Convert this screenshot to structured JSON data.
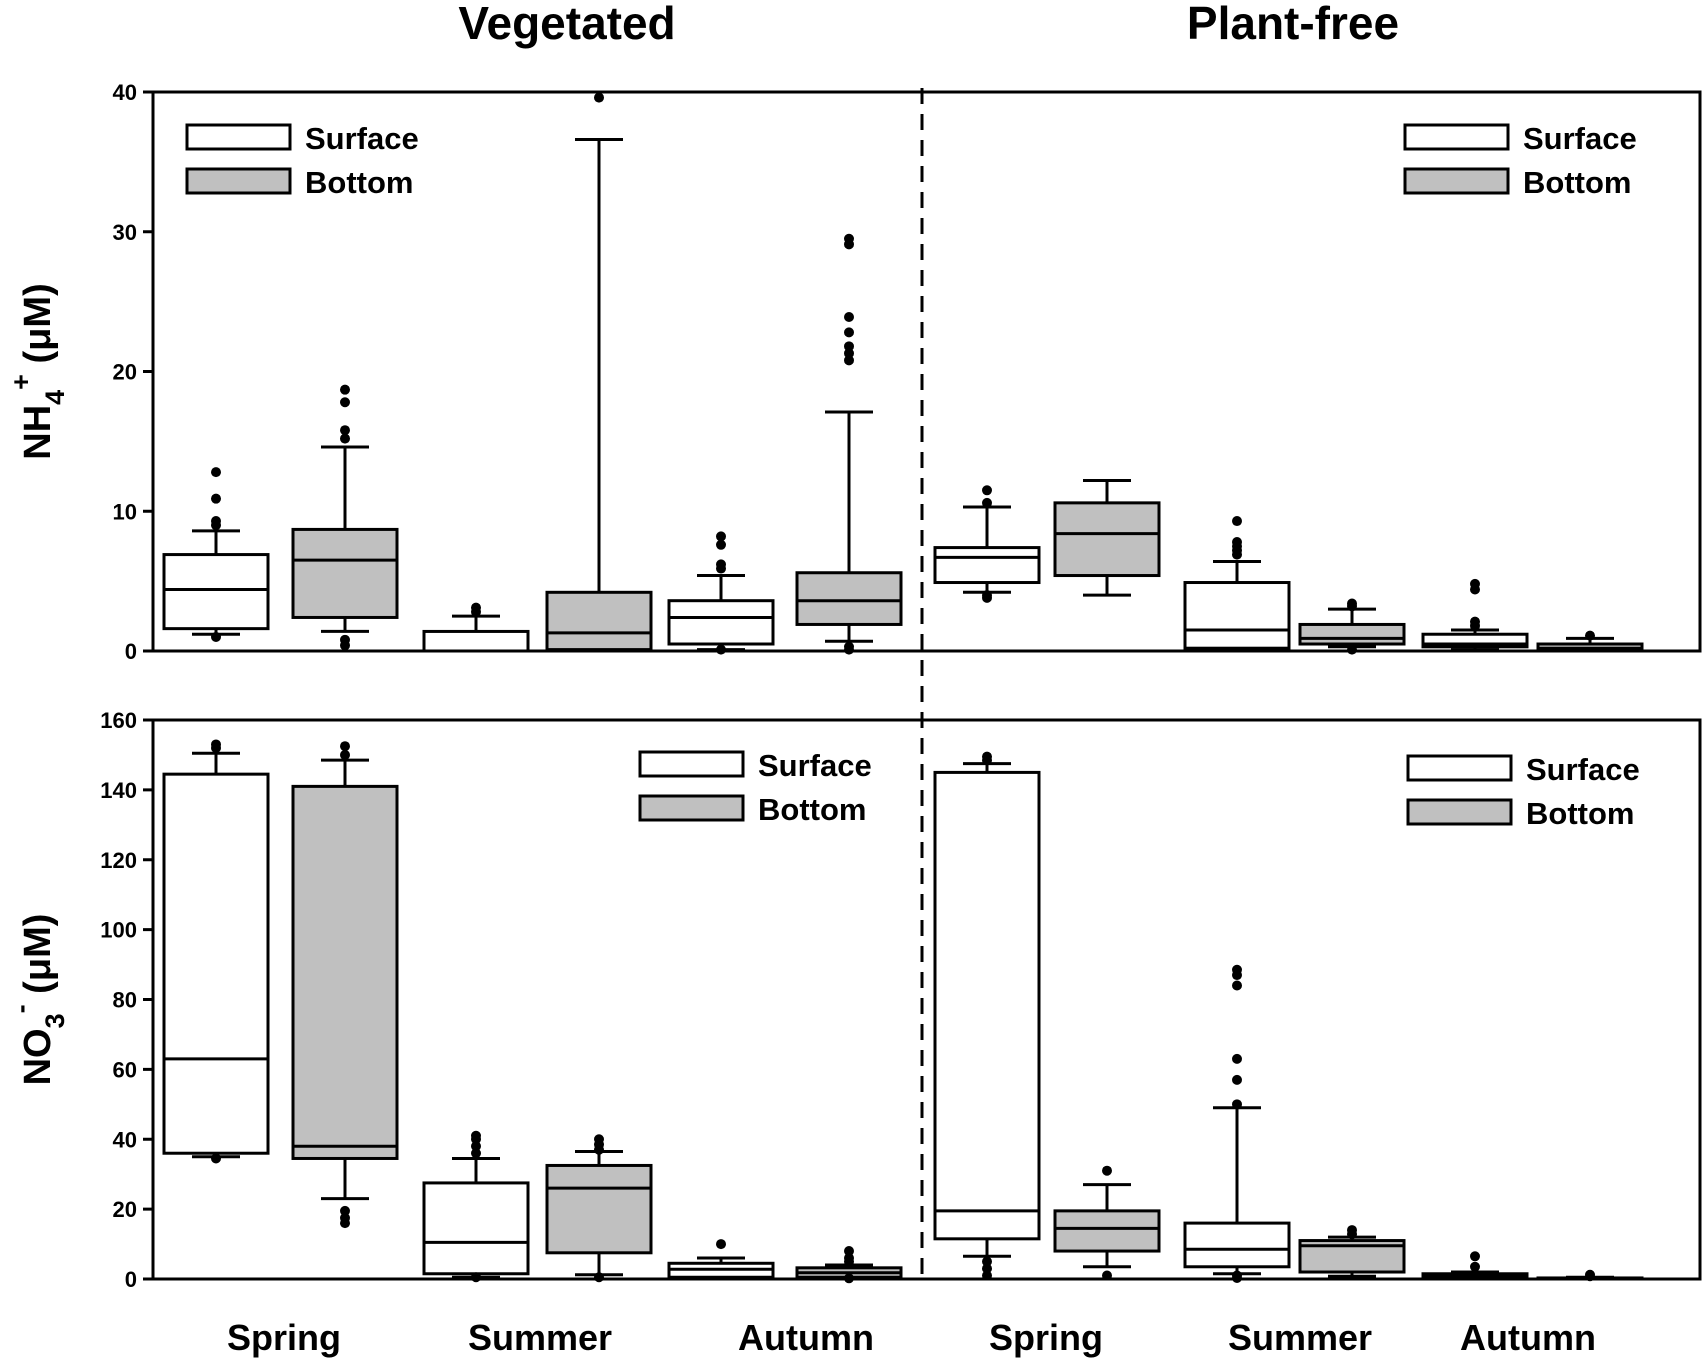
{
  "chart_data": {
    "type": "box",
    "headers": {
      "left": "Vegetated",
      "right": "Plant-free"
    },
    "categories": [
      "Spring",
      "Summer",
      "Autumn",
      "Spring",
      "Summer",
      "Autumn"
    ],
    "legend": {
      "surface": "Surface",
      "bottom": "Bottom"
    },
    "colors": {
      "surface": "#ffffff",
      "bottom": "#c0c0c0",
      "stroke": "#000000"
    },
    "panels": [
      {
        "id": "nh4",
        "ylabel_main": "NH",
        "ylabel_sub": "4",
        "ylabel_sup": "+",
        "ylabel_unit": " (μM)",
        "ylim": [
          0,
          40
        ],
        "yticks": [
          0,
          10,
          20,
          30,
          40
        ],
        "tick_labels": [
          "0",
          "10",
          "20",
          "30",
          "40"
        ],
        "boxes": [
          {
            "group": "Vegetated",
            "season": "Spring",
            "layer": "Surface",
            "whislo": 1.2,
            "q1": 1.6,
            "med": 4.4,
            "q3": 6.9,
            "whishi": 8.6,
            "fliers": [
              1.0,
              9.0,
              9.3,
              10.9,
              12.8
            ]
          },
          {
            "group": "Vegetated",
            "season": "Spring",
            "layer": "Bottom",
            "whislo": 1.4,
            "q1": 2.4,
            "med": 6.5,
            "q3": 8.7,
            "whishi": 14.6,
            "fliers": [
              0.4,
              0.8,
              15.2,
              15.8,
              17.8,
              18.7
            ]
          },
          {
            "group": "Vegetated",
            "season": "Summer",
            "layer": "Surface",
            "whislo": 0.0,
            "q1": 0.0,
            "med": 0.0,
            "q3": 1.4,
            "whishi": 2.5,
            "fliers": [
              2.8,
              3.1
            ]
          },
          {
            "group": "Vegetated",
            "season": "Summer",
            "layer": "Bottom",
            "whislo": 0.1,
            "q1": 0.1,
            "med": 1.3,
            "q3": 4.2,
            "whishi": 36.6,
            "fliers": [
              39.6
            ]
          },
          {
            "group": "Vegetated",
            "season": "Autumn",
            "layer": "Surface",
            "whislo": 0.1,
            "q1": 0.5,
            "med": 2.4,
            "q3": 3.6,
            "whishi": 5.4,
            "fliers": [
              0.1,
              5.9,
              6.2,
              7.6,
              8.2
            ]
          },
          {
            "group": "Vegetated",
            "season": "Autumn",
            "layer": "Bottom",
            "whislo": 0.7,
            "q1": 1.9,
            "med": 3.6,
            "q3": 5.6,
            "whishi": 17.1,
            "fliers": [
              0.1,
              0.3,
              20.8,
              21.3,
              21.8,
              22.8,
              23.9,
              29.1,
              29.5
            ]
          },
          {
            "group": "Plant-free",
            "season": "Spring",
            "layer": "Surface",
            "whislo": 4.2,
            "q1": 4.9,
            "med": 6.7,
            "q3": 7.4,
            "whishi": 10.3,
            "fliers": [
              3.8,
              4.0,
              10.6,
              11.5
            ]
          },
          {
            "group": "Plant-free",
            "season": "Spring",
            "layer": "Bottom",
            "whislo": 4.0,
            "q1": 5.4,
            "med": 8.4,
            "q3": 10.6,
            "whishi": 12.2,
            "fliers": []
          },
          {
            "group": "Plant-free",
            "season": "Summer",
            "layer": "Surface",
            "whislo": 0.1,
            "q1": 0.2,
            "med": 1.5,
            "q3": 4.9,
            "whishi": 6.4,
            "fliers": [
              6.9,
              7.2,
              7.5,
              7.8,
              9.3
            ]
          },
          {
            "group": "Plant-free",
            "season": "Summer",
            "layer": "Bottom",
            "whislo": 0.3,
            "q1": 0.5,
            "med": 0.9,
            "q3": 1.9,
            "whishi": 3.0,
            "fliers": [
              0.1,
              3.2,
              3.4
            ]
          },
          {
            "group": "Plant-free",
            "season": "Autumn",
            "layer": "Surface",
            "whislo": 0.1,
            "q1": 0.3,
            "med": 0.5,
            "q3": 1.2,
            "whishi": 1.5,
            "fliers": [
              1.8,
              2.1,
              4.4,
              4.8
            ]
          },
          {
            "group": "Plant-free",
            "season": "Autumn",
            "layer": "Bottom",
            "whislo": 0.0,
            "q1": 0.1,
            "med": 0.2,
            "q3": 0.5,
            "whishi": 0.9,
            "fliers": [
              1.1
            ]
          }
        ]
      },
      {
        "id": "no3",
        "ylabel_main": "NO",
        "ylabel_sub": "3",
        "ylabel_sup": "-",
        "ylabel_unit": " (μM)",
        "ylim": [
          0,
          160
        ],
        "yticks": [
          0,
          20,
          40,
          60,
          80,
          100,
          120,
          140,
          160
        ],
        "tick_labels": [
          "0",
          "20",
          "40",
          "60",
          "80",
          "100",
          "120",
          "140",
          "160"
        ],
        "boxes": [
          {
            "group": "Vegetated",
            "season": "Spring",
            "layer": "Surface",
            "whislo": 35,
            "q1": 36,
            "med": 63,
            "q3": 144.5,
            "whishi": 150.5,
            "fliers": [
              34.5,
              152,
              153
            ]
          },
          {
            "group": "Vegetated",
            "season": "Spring",
            "layer": "Bottom",
            "whislo": 23,
            "q1": 34.5,
            "med": 38,
            "q3": 141,
            "whishi": 148.5,
            "fliers": [
              16,
              17.5,
              19.5,
              150,
              152.5
            ]
          },
          {
            "group": "Vegetated",
            "season": "Summer",
            "layer": "Surface",
            "whislo": 0.5,
            "q1": 1.5,
            "med": 10.5,
            "q3": 27.5,
            "whishi": 34.5,
            "fliers": [
              0.5,
              36,
              38,
              40,
              41
            ]
          },
          {
            "group": "Vegetated",
            "season": "Summer",
            "layer": "Bottom",
            "whislo": 1.2,
            "q1": 7.5,
            "med": 26,
            "q3": 32.5,
            "whishi": 36.5,
            "fliers": [
              0.5,
              37,
              38.5,
              40
            ]
          },
          {
            "group": "Vegetated",
            "season": "Autumn",
            "layer": "Surface",
            "whislo": 0.3,
            "q1": 0.5,
            "med": 2.8,
            "q3": 4.5,
            "whishi": 6,
            "fliers": [
              10
            ]
          },
          {
            "group": "Vegetated",
            "season": "Autumn",
            "layer": "Bottom",
            "whislo": 0.3,
            "q1": 0.5,
            "med": 1.8,
            "q3": 3.2,
            "whishi": 4,
            "fliers": [
              0.2,
              5,
              6,
              8
            ]
          },
          {
            "group": "Plant-free",
            "season": "Spring",
            "layer": "Surface",
            "whislo": 6.5,
            "q1": 11.5,
            "med": 19.5,
            "q3": 145,
            "whishi": 147.5,
            "fliers": [
              1,
              3,
              5,
              148.5,
              149.5
            ]
          },
          {
            "group": "Plant-free",
            "season": "Spring",
            "layer": "Bottom",
            "whislo": 3.5,
            "q1": 8,
            "med": 14.5,
            "q3": 19.5,
            "whishi": 27,
            "fliers": [
              1,
              31
            ]
          },
          {
            "group": "Plant-free",
            "season": "Summer",
            "layer": "Surface",
            "whislo": 1.5,
            "q1": 3.5,
            "med": 8.5,
            "q3": 16,
            "whishi": 49,
            "fliers": [
              0.3,
              1,
              50,
              57,
              63,
              84,
              87,
              88.5
            ]
          },
          {
            "group": "Plant-free",
            "season": "Summer",
            "layer": "Bottom",
            "whislo": 0.8,
            "q1": 2,
            "med": 9.5,
            "q3": 11,
            "whishi": 12,
            "fliers": [
              12.8,
              14
            ]
          },
          {
            "group": "Plant-free",
            "season": "Autumn",
            "layer": "Surface",
            "whislo": 0.1,
            "q1": 0.3,
            "med": 0.8,
            "q3": 1.5,
            "whishi": 2,
            "fliers": [
              3.5,
              6.5
            ]
          },
          {
            "group": "Plant-free",
            "season": "Autumn",
            "layer": "Bottom",
            "whislo": 0.05,
            "q1": 0.1,
            "med": 0.2,
            "q3": 0.3,
            "whishi": 0.5,
            "fliers": [
              0.8,
              1.2
            ]
          }
        ]
      }
    ]
  }
}
